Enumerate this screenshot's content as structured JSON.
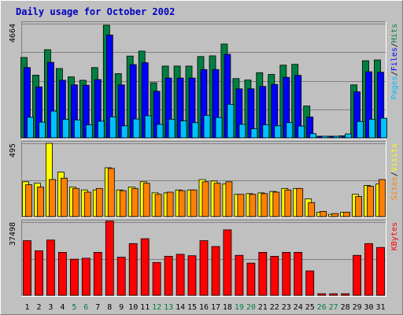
{
  "chart_data": {
    "type": "bar",
    "title": "Daily usage for October 2002",
    "categories": [
      "1",
      "2",
      "3",
      "4",
      "5",
      "6",
      "7",
      "8",
      "9",
      "10",
      "11",
      "12",
      "13",
      "14",
      "15",
      "16",
      "17",
      "18",
      "19",
      "20",
      "21",
      "22",
      "23",
      "24",
      "25",
      "26",
      "27",
      "28",
      "29",
      "30",
      "31"
    ],
    "weekend_days": [
      "5",
      "6",
      "12",
      "13",
      "19",
      "20",
      "26",
      "27"
    ],
    "grid": true,
    "colors": {
      "background": "#c0c0c0",
      "plot_background": "#c0c0c0",
      "title": "#0000c0",
      "hits": "#008040",
      "files": "#0000ff",
      "pages": "#00c0ff",
      "visits": "#ffff00",
      "sites": "#ff8000",
      "kbytes": "#ff0000",
      "weekday_label": "#000000",
      "weekend_label": "#008040"
    },
    "panels": [
      {
        "name": "hits-files-pages",
        "ymax_label": "4664",
        "ylim": [
          0,
          4664
        ],
        "ylabel": {
          "parts": [
            "Pages",
            "/",
            "Files",
            "/",
            "Hits"
          ]
        },
        "series": [
          {
            "name": "Hits",
            "values": [
              3280,
              2560,
              3600,
              2830,
              2490,
              2350,
              2870,
              4600,
              2620,
              3340,
              3540,
              2250,
              2930,
              2930,
              2930,
              3320,
              3350,
              3830,
              2420,
              2360,
              2660,
              2590,
              2970,
              3000,
              1300,
              0,
              0,
              80,
              2160,
              3150,
              3180
            ]
          },
          {
            "name": "Files",
            "values": [
              2870,
              2080,
              3080,
              2350,
              2160,
              2150,
              2380,
              4200,
              2160,
              2990,
              3070,
              1900,
              2440,
              2440,
              2440,
              2790,
              2790,
              3410,
              2000,
              2000,
              2100,
              2180,
              2470,
              2550,
              850,
              0,
              0,
              50,
              1880,
              2700,
              2680
            ]
          },
          {
            "name": "Pages",
            "values": [
              840,
              640,
              1090,
              760,
              730,
              530,
              680,
              860,
              490,
              770,
              900,
              550,
              760,
              690,
              620,
              920,
              830,
              1370,
              550,
              370,
              530,
              490,
              620,
              480,
              170,
              50,
              50,
              160,
              670,
              760,
              800
            ]
          }
        ]
      },
      {
        "name": "visits-sites",
        "ymax_label": "495",
        "ylim": [
          0,
          495
        ],
        "ylabel": {
          "parts": [
            "Sites",
            "/",
            "Visits"
          ]
        },
        "series": [
          {
            "name": "Visits",
            "values": [
              235,
              225,
              495,
              300,
              200,
              180,
              180,
              330,
              180,
              200,
              235,
              160,
              160,
              180,
              180,
              250,
              240,
              220,
              150,
              155,
              160,
              170,
              190,
              190,
              120,
              30,
              15,
              30,
              150,
              210,
              220
            ]
          },
          {
            "name": "Sites",
            "values": [
              215,
              200,
              250,
              260,
              190,
              165,
              190,
              325,
              175,
              190,
              225,
              150,
              165,
              175,
              180,
              235,
              225,
              235,
              150,
              150,
              155,
              165,
              180,
              190,
              95,
              35,
              20,
              30,
              135,
              205,
              250
            ]
          }
        ]
      },
      {
        "name": "kbytes",
        "ymax_label": "37498",
        "ylim": [
          0,
          37498
        ],
        "ylabel": {
          "parts": [
            "KBytes"
          ]
        },
        "series": [
          {
            "name": "KBytes",
            "values": [
              28000,
              22800,
              28300,
              22000,
              18500,
              19000,
              22000,
              38000,
              19500,
              26500,
              29000,
              16800,
              20000,
              21000,
              20300,
              28000,
              25000,
              33500,
              20500,
              16500,
              22000,
              20000,
              22000,
              22000,
              12500,
              0,
              0,
              0,
              20500,
              26500,
              24500
            ]
          }
        ]
      }
    ]
  }
}
